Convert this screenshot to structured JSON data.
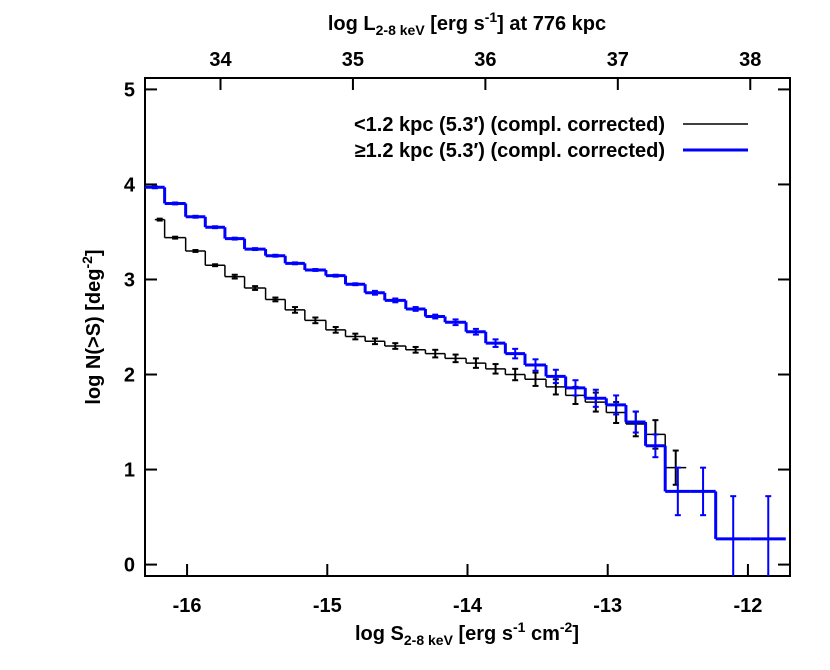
{
  "chart_data": {
    "type": "step",
    "x_label": [
      "log S",
      "2-8 keV",
      " [erg s",
      "-1",
      " cm",
      "-2",
      "]"
    ],
    "x2_label": [
      "log L",
      "2-8 keV",
      " [erg s",
      "-1",
      "] at 776 kpc"
    ],
    "y_label": [
      "log N(>S) [deg",
      "-2",
      "]"
    ],
    "xlim": [
      -16.3,
      -11.7
    ],
    "xticks": [
      -16,
      -15,
      -14,
      -13,
      -12
    ],
    "x2lim": [
      33.43,
      38.3
    ],
    "x2ticks": [
      34,
      35,
      36,
      37,
      38
    ],
    "ylim": [
      -0.12,
      5.12
    ],
    "yticks": [
      0,
      1,
      2,
      3,
      4,
      5
    ],
    "legend": "upper right",
    "series": [
      {
        "name": "<1.2 kpc (5.3′) (compl. corrected)",
        "color": "#000000",
        "bins": [
          -16.23,
          -16.16,
          -16.01,
          -15.87,
          -15.73,
          -15.59,
          -15.44,
          -15.3,
          -15.16,
          -15.01,
          -14.87,
          -14.73,
          -14.59,
          -14.44,
          -14.3,
          -14.16,
          -14.01,
          -13.87,
          -13.73,
          -13.59,
          -13.44,
          -13.3,
          -13.16,
          -13.01,
          -12.87,
          -12.73,
          -12.59,
          -12.44
        ],
        "values": [
          3.63,
          3.44,
          3.3,
          3.15,
          3.03,
          2.91,
          2.79,
          2.68,
          2.57,
          2.47,
          2.4,
          2.35,
          2.3,
          2.26,
          2.22,
          2.17,
          2.12,
          2.06,
          2.0,
          1.95,
          1.87,
          1.78,
          1.71,
          1.6,
          1.48,
          1.37,
          1.02
        ],
        "errors": [
          0.01,
          0.01,
          0.01,
          0.01,
          0.02,
          0.02,
          0.02,
          0.03,
          0.03,
          0.03,
          0.03,
          0.03,
          0.03,
          0.03,
          0.04,
          0.04,
          0.05,
          0.05,
          0.06,
          0.07,
          0.08,
          0.09,
          0.1,
          0.11,
          0.13,
          0.15,
          0.18
        ]
      },
      {
        "name": "≥1.2 kpc (5.3′) (compl. corrected)",
        "color": "#0000ff",
        "bins": [
          -16.3,
          -16.16,
          -16.01,
          -15.87,
          -15.73,
          -15.59,
          -15.44,
          -15.3,
          -15.16,
          -15.01,
          -14.87,
          -14.73,
          -14.59,
          -14.44,
          -14.3,
          -14.16,
          -14.01,
          -13.87,
          -13.73,
          -13.59,
          -13.44,
          -13.3,
          -13.16,
          -13.01,
          -12.87,
          -12.73,
          -12.59,
          -12.41,
          -12.23,
          -11.98,
          -11.73
        ],
        "values": [
          3.97,
          3.8,
          3.66,
          3.55,
          3.43,
          3.32,
          3.25,
          3.17,
          3.1,
          3.04,
          2.95,
          2.86,
          2.78,
          2.69,
          2.61,
          2.55,
          2.45,
          2.33,
          2.22,
          2.1,
          1.98,
          1.86,
          1.75,
          1.68,
          1.5,
          1.25,
          0.77,
          0.77,
          0.27,
          0.27
        ],
        "errors": [
          0.01,
          0.01,
          0.01,
          0.01,
          0.01,
          0.01,
          0.01,
          0.01,
          0.01,
          0.01,
          0.01,
          0.02,
          0.02,
          0.02,
          0.02,
          0.03,
          0.03,
          0.04,
          0.05,
          0.06,
          0.07,
          0.08,
          0.09,
          0.1,
          0.11,
          0.12,
          0.25,
          0.25,
          0.45,
          0.45
        ]
      }
    ]
  }
}
